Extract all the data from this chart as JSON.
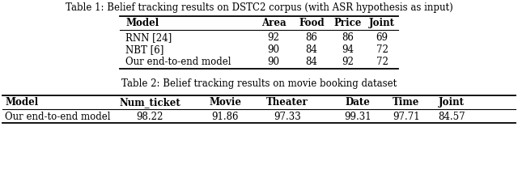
{
  "table1_caption": "Table 1: Belief tracking results on DSTC2 corpus (with ASR hypothesis as input)",
  "table1_headers": [
    "Model",
    "Area",
    "Food",
    "Price",
    "Joint"
  ],
  "table1_rows": [
    [
      "RNN [24]",
      "92",
      "86",
      "86",
      "69"
    ],
    [
      "NBT [6]",
      "90",
      "84",
      "94",
      "72"
    ],
    [
      "Our end-to-end model",
      "90",
      "84",
      "92",
      "72"
    ]
  ],
  "table2_caption": "Table 2: Belief tracking results on movie booking dataset",
  "table2_headers": [
    "Model",
    "Num_ticket",
    "Movie",
    "Theater",
    "Date",
    "Time",
    "Joint"
  ],
  "table2_rows": [
    [
      "Our end-to-end model",
      "98.22",
      "91.86",
      "97.33",
      "99.31",
      "97.71",
      "84.57"
    ]
  ],
  "bg_color": "#ffffff",
  "text_color": "#000000",
  "fig_width": 6.4,
  "fig_height": 2.09,
  "dpi": 100
}
